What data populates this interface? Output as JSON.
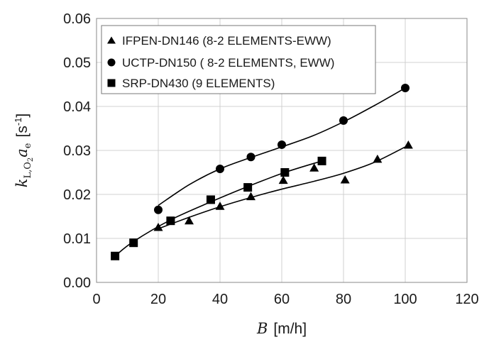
{
  "chart_data": {
    "type": "scatter",
    "xlabel": {
      "var": "B",
      "unit": "[m/h]"
    },
    "ylabel": {
      "var": "k",
      "sub": "L,O",
      "sub2": "2",
      "var2": "a",
      "sub3": "e",
      "unit": "[s",
      "unitsup": "-1",
      "unitclose": "]"
    },
    "xlim": [
      0,
      120
    ],
    "ylim": [
      0,
      0.06
    ],
    "xticks": [
      "0",
      "20",
      "40",
      "60",
      "80",
      "100",
      "120"
    ],
    "yticks": [
      "0.00",
      "0.01",
      "0.02",
      "0.03",
      "0.04",
      "0.05",
      "0.06"
    ],
    "grid": true,
    "legend_position": "top-left",
    "series": [
      {
        "name": "IFPEN-DN146 (8-2 ELEMENTS-EWW)",
        "marker": "triangle",
        "points": [
          [
            20,
            0.0125
          ],
          [
            30,
            0.014
          ],
          [
            40,
            0.0173
          ],
          [
            50,
            0.0195
          ],
          [
            60.5,
            0.0232
          ],
          [
            70.5,
            0.026
          ],
          [
            80.5,
            0.0233
          ],
          [
            91,
            0.028
          ],
          [
            101,
            0.0312
          ]
        ],
        "trend": [
          [
            20,
            0.0122
          ],
          [
            30,
            0.0148
          ],
          [
            40,
            0.0172
          ],
          [
            50,
            0.0193
          ],
          [
            60,
            0.0212
          ],
          [
            70,
            0.0229
          ],
          [
            80,
            0.0248
          ],
          [
            90,
            0.0273
          ],
          [
            100,
            0.0308
          ]
        ]
      },
      {
        "name": "UCTP-DN150 ( 8-2 ELEMENTS, EWW)",
        "marker": "circle",
        "points": [
          [
            20,
            0.0165
          ],
          [
            40,
            0.0258
          ],
          [
            50,
            0.0285
          ],
          [
            60,
            0.0313
          ],
          [
            80,
            0.0368
          ],
          [
            100,
            0.0442
          ]
        ],
        "trend": [
          [
            20,
            0.0175
          ],
          [
            30,
            0.0222
          ],
          [
            40,
            0.0258
          ],
          [
            50,
            0.0284
          ],
          [
            60,
            0.0308
          ],
          [
            70,
            0.0333
          ],
          [
            80,
            0.0365
          ],
          [
            90,
            0.0402
          ],
          [
            100,
            0.0442
          ]
        ]
      },
      {
        "name": "SRP-DN430 (9 ELEMENTS)",
        "marker": "square",
        "points": [
          [
            6,
            0.006
          ],
          [
            12,
            0.009
          ],
          [
            24,
            0.014
          ],
          [
            37,
            0.0188
          ],
          [
            49,
            0.0216
          ],
          [
            61,
            0.025
          ],
          [
            73,
            0.0276
          ]
        ],
        "trend": [
          [
            6,
            0.006
          ],
          [
            12,
            0.0093
          ],
          [
            24,
            0.0142
          ],
          [
            37,
            0.0183
          ],
          [
            49,
            0.0218
          ],
          [
            61,
            0.025
          ],
          [
            73,
            0.0276
          ]
        ]
      }
    ]
  }
}
